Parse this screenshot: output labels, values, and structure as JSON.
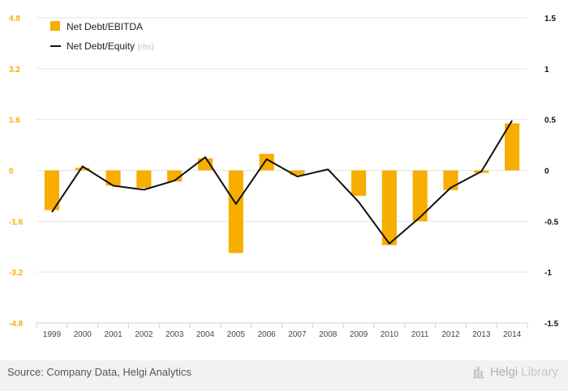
{
  "chart_data": {
    "type": "bar",
    "categories": [
      "1999",
      "2000",
      "2001",
      "2002",
      "2003",
      "2004",
      "2005",
      "2006",
      "2007",
      "2008",
      "2009",
      "2010",
      "2011",
      "2012",
      "2013",
      "2014"
    ],
    "series": [
      {
        "name": "Net Debt/EBITDA",
        "type": "bar",
        "axis": "left",
        "color": "#f7ae00",
        "values": [
          -1.25,
          0.08,
          -0.48,
          -0.55,
          -0.35,
          0.38,
          -2.6,
          0.52,
          -0.15,
          0.0,
          -0.8,
          -2.35,
          -1.6,
          -0.62,
          -0.08,
          1.48
        ]
      },
      {
        "name": "Net Debt/Equity",
        "name_suffix": "(rhs)",
        "type": "line",
        "axis": "right",
        "color": "#111111",
        "values": [
          -0.41,
          0.04,
          -0.15,
          -0.19,
          -0.1,
          0.13,
          -0.33,
          0.11,
          -0.06,
          0.01,
          -0.31,
          -0.72,
          -0.46,
          -0.17,
          -0.01,
          0.49
        ]
      }
    ],
    "left_axis": {
      "ticks": [
        "4.8",
        "3.2",
        "1.6",
        "0",
        "-1.6",
        "-3.2",
        "-4.8"
      ],
      "tick_values": [
        4.8,
        3.2,
        1.6,
        0,
        -1.6,
        -3.2,
        -4.8
      ],
      "ylim": [
        -4.8,
        4.8
      ],
      "color": "#f7ae00"
    },
    "right_axis": {
      "ticks": [
        "1.5",
        "1",
        "0.5",
        "0",
        "-0.5",
        "-1",
        "-1.5"
      ],
      "tick_values": [
        1.5,
        1,
        0.5,
        0,
        -0.5,
        -1,
        -1.5
      ],
      "ylim": [
        -1.5,
        1.5
      ],
      "color": "#111111"
    },
    "grid": true,
    "legend_placement": "top-left"
  },
  "footer": {
    "source": "Source: Company Data, Helgi Analytics",
    "brand_main": "Helgi",
    "brand_muted": "Library"
  }
}
